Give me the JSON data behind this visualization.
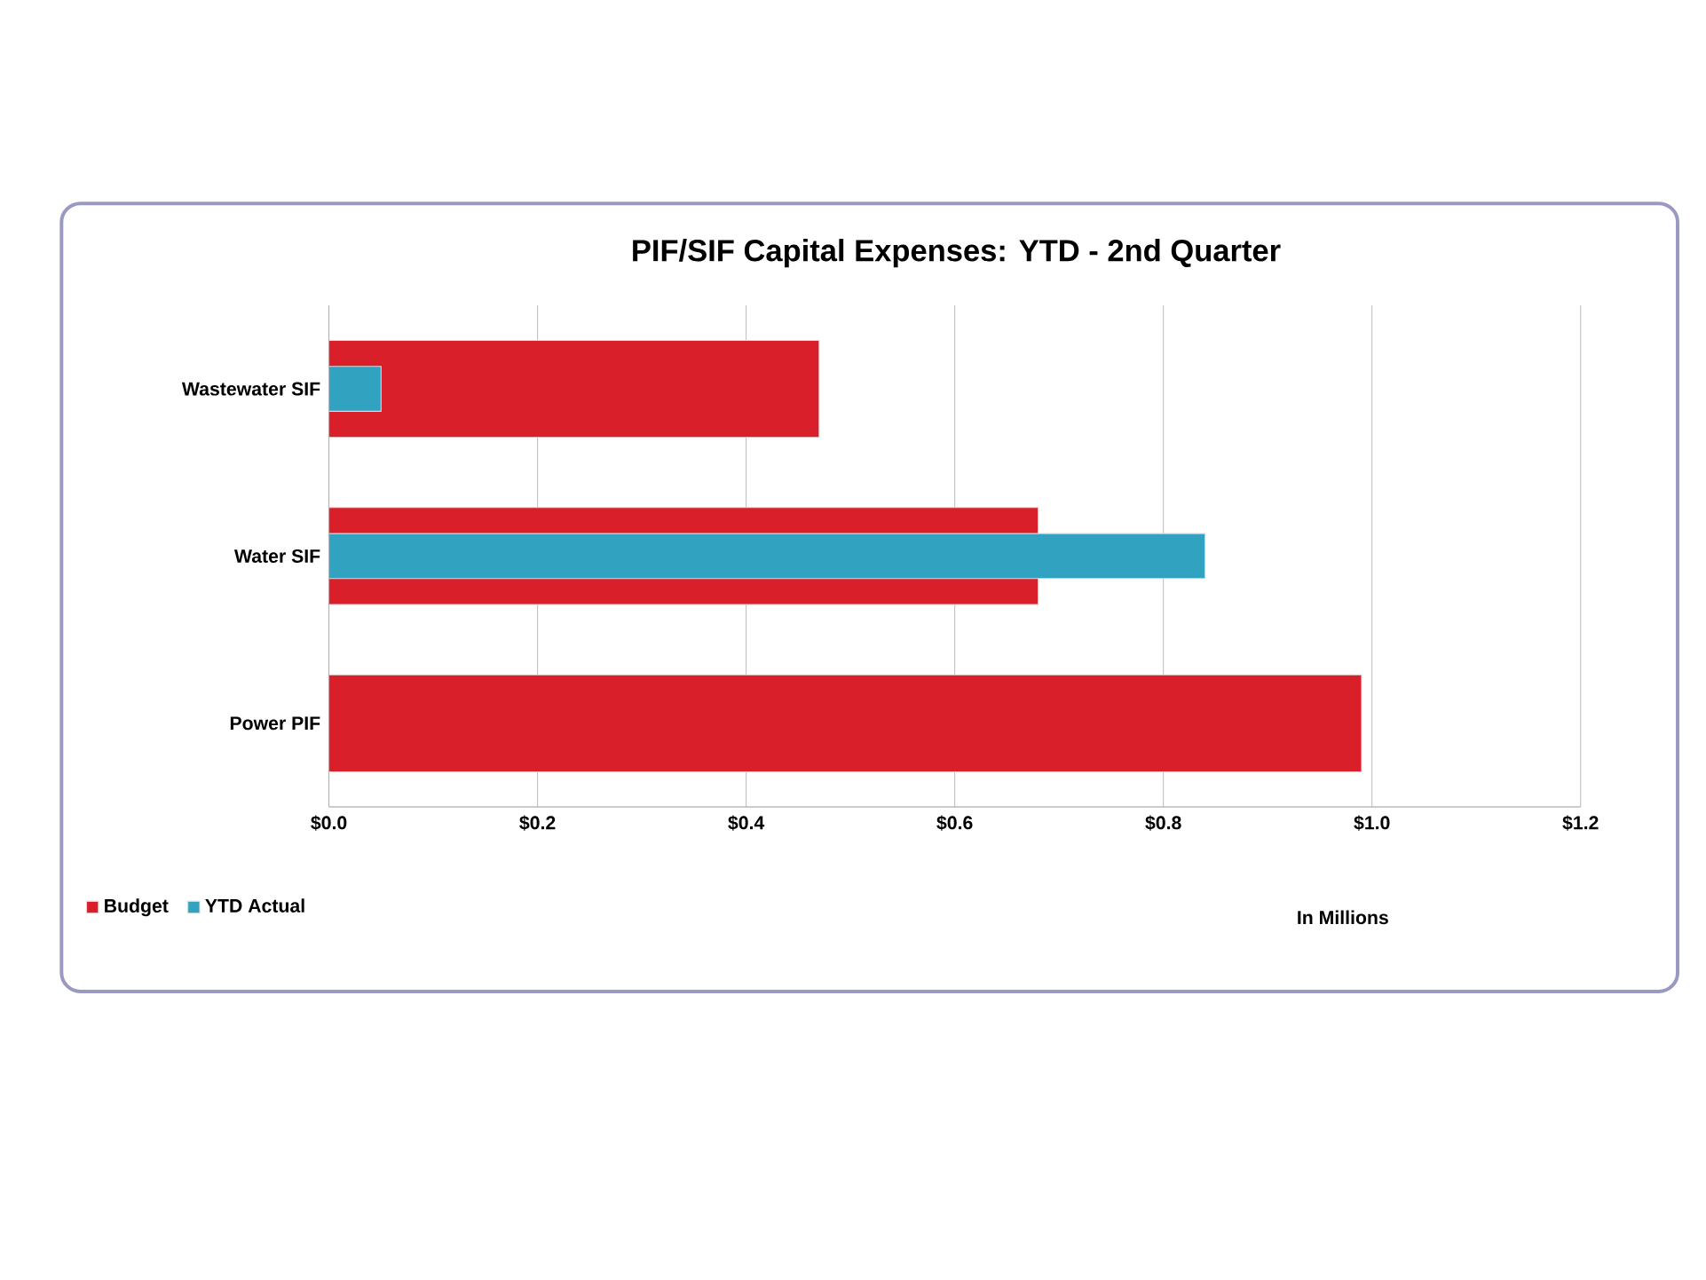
{
  "chart_data": {
    "type": "bar",
    "orientation": "horizontal",
    "title": "PIF/SIF Capital Expenses:  YTD - 2nd Quarter",
    "xlabel": "In Millions",
    "categories": [
      "Wastewater SIF",
      "Water SIF",
      "Power PIF"
    ],
    "series": [
      {
        "name": "Budget",
        "color": "#d9202a",
        "values": [
          0.47,
          0.68,
          0.99
        ]
      },
      {
        "name": "YTD Actual",
        "color": "#31a2c0",
        "values": [
          0.05,
          0.84,
          null
        ]
      }
    ],
    "xlim": [
      0,
      1.2
    ],
    "xticks": [
      {
        "value": 0,
        "label": "$0.0"
      },
      {
        "value": 0.2,
        "label": "$0.2"
      },
      {
        "value": 0.4,
        "label": "$0.4"
      },
      {
        "value": 0.6,
        "label": "$0.6"
      },
      {
        "value": 0.8,
        "label": "$0.8"
      },
      {
        "value": 1.0,
        "label": "$1.0"
      },
      {
        "value": 1.2,
        "label": "$1.2"
      }
    ],
    "grid": "x",
    "legend": "bottom left"
  }
}
